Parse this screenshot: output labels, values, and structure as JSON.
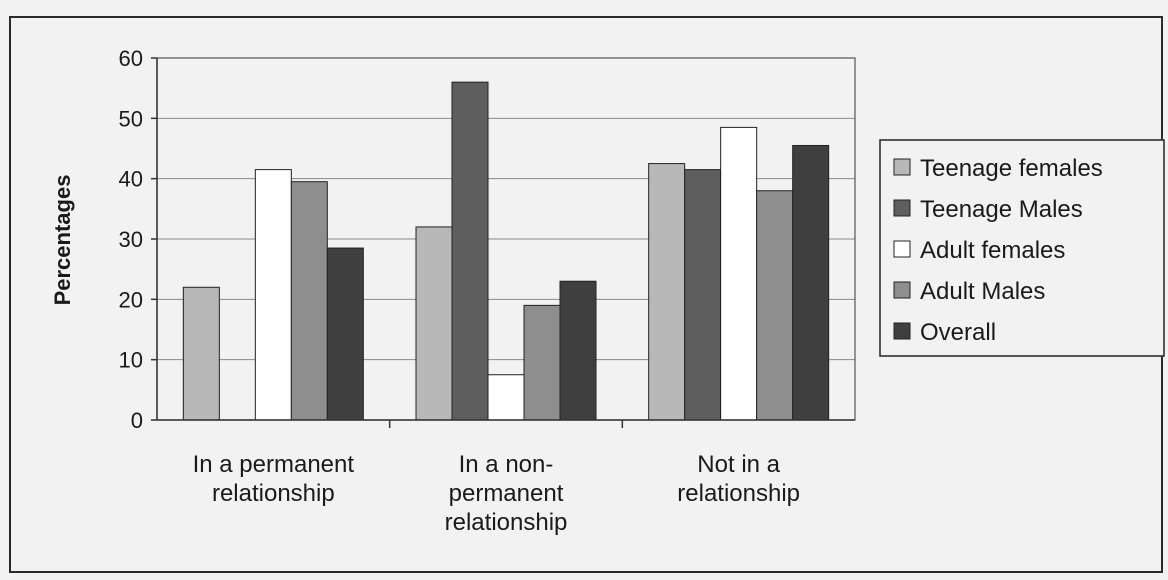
{
  "chart_data": {
    "type": "bar",
    "ylabel": "Percentages",
    "xlabel": "",
    "ylim": [
      0,
      60
    ],
    "yticks": [
      0,
      10,
      20,
      30,
      40,
      50,
      60
    ],
    "grid": true,
    "legend_position": "right",
    "categories": [
      [
        "In a permanent",
        "relationship"
      ],
      [
        "In a non-",
        "permanent",
        "relationship"
      ],
      [
        "Not in a",
        "relationship"
      ]
    ],
    "series": [
      {
        "name": "Teenage females",
        "color": "#b8b8b8",
        "values": [
          22,
          32,
          42.5
        ]
      },
      {
        "name": "Teenage Males",
        "color": "#5e5e5e",
        "values": [
          0,
          56,
          41.5
        ]
      },
      {
        "name": "Adult females",
        "color": "#ffffff",
        "values": [
          41.5,
          7.5,
          48.5
        ]
      },
      {
        "name": "Adult Males",
        "color": "#8e8e8e",
        "values": [
          39.5,
          19,
          38
        ]
      },
      {
        "name": "Overall",
        "color": "#3f3f3f",
        "values": [
          28.5,
          23,
          45.5
        ]
      }
    ]
  }
}
